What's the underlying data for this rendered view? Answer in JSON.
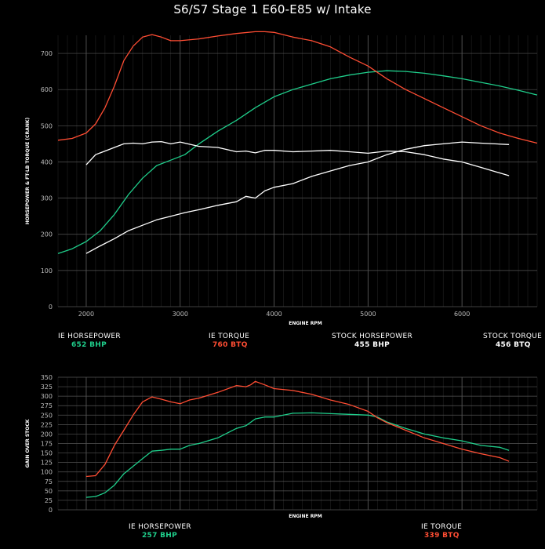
{
  "title": "S6/S7 Stage 1 E60-E85 w/ Intake",
  "colors": {
    "ie_hp": "#1fce8b",
    "ie_tq": "#ff4d33",
    "stock": "#ffffff",
    "grid": "#555555",
    "grid_minor": "#2a2a2a"
  },
  "chart_data": [
    {
      "type": "line",
      "title": "S6/S7 Stage 1 E60-E85 w/ Intake",
      "xlabel": "ENGINE RPM",
      "ylabel": "HORSEPOWER & FT-LB TORQUE (CRANK)",
      "xlim": [
        1700,
        6800
      ],
      "ylim": [
        0,
        750
      ],
      "xticks": [
        "2000",
        "3000",
        "4000",
        "5000",
        "6000"
      ],
      "yticks": [
        "0",
        "100",
        "200",
        "300",
        "400",
        "500",
        "600",
        "700"
      ],
      "grid": true,
      "legend_position": "bottom",
      "series": [
        {
          "name": "IE HORSEPOWER",
          "color": "#1fce8b",
          "peak_label": "652 BHP",
          "x": [
            1700,
            1850,
            2000,
            2150,
            2300,
            2450,
            2600,
            2750,
            2900,
            3050,
            3200,
            3400,
            3600,
            3800,
            4000,
            4200,
            4400,
            4600,
            4800,
            5000,
            5200,
            5400,
            5600,
            5800,
            6000,
            6200,
            6400,
            6600,
            6800
          ],
          "y": [
            147,
            160,
            180,
            210,
            255,
            310,
            355,
            390,
            405,
            420,
            450,
            485,
            515,
            550,
            580,
            600,
            615,
            630,
            640,
            648,
            652,
            650,
            645,
            638,
            630,
            620,
            610,
            598,
            585
          ]
        },
        {
          "name": "IE TORQUE",
          "color": "#ff4d33",
          "peak_label": "760 BTQ",
          "x": [
            1700,
            1850,
            2000,
            2100,
            2200,
            2300,
            2400,
            2500,
            2600,
            2700,
            2800,
            2900,
            3000,
            3200,
            3400,
            3600,
            3800,
            3900,
            4000,
            4200,
            4400,
            4600,
            4800,
            5000,
            5200,
            5400,
            5600,
            5800,
            6000,
            6200,
            6400,
            6600,
            6800
          ],
          "y": [
            460,
            465,
            480,
            505,
            550,
            610,
            680,
            720,
            745,
            752,
            745,
            735,
            735,
            740,
            748,
            755,
            760,
            760,
            758,
            745,
            735,
            718,
            690,
            665,
            630,
            600,
            575,
            550,
            525,
            500,
            480,
            465,
            452
          ]
        },
        {
          "name": "STOCK HORSEPOWER",
          "color": "#ffffff",
          "peak_label": "455 BHP",
          "x": [
            2000,
            2150,
            2300,
            2450,
            2600,
            2750,
            2900,
            3050,
            3200,
            3400,
            3600,
            3700,
            3800,
            3900,
            4000,
            4200,
            4400,
            4600,
            4800,
            5000,
            5200,
            5400,
            5600,
            5800,
            6000,
            6200,
            6500
          ],
          "y": [
            147,
            168,
            188,
            210,
            225,
            240,
            250,
            260,
            268,
            280,
            290,
            305,
            300,
            320,
            330,
            340,
            360,
            375,
            390,
            400,
            420,
            435,
            445,
            450,
            455,
            452,
            448
          ]
        },
        {
          "name": "STOCK TORQUE",
          "color": "#ffffff",
          "peak_label": "456 BTQ",
          "x": [
            2000,
            2100,
            2200,
            2300,
            2400,
            2500,
            2600,
            2700,
            2800,
            2900,
            3000,
            3200,
            3400,
            3600,
            3700,
            3800,
            3900,
            4000,
            4200,
            4400,
            4600,
            4800,
            5000,
            5200,
            5400,
            5600,
            5800,
            6000,
            6200,
            6500
          ],
          "y": [
            392,
            420,
            430,
            440,
            450,
            452,
            450,
            455,
            456,
            450,
            455,
            443,
            440,
            428,
            430,
            425,
            432,
            432,
            428,
            430,
            432,
            428,
            424,
            430,
            428,
            420,
            408,
            400,
            385,
            362
          ]
        }
      ]
    },
    {
      "type": "line",
      "xlabel": "ENGINE RPM",
      "ylabel": "GAIN OVER STOCK",
      "xlim": [
        1700,
        6800
      ],
      "ylim": [
        0,
        350
      ],
      "xticks": [],
      "yticks": [
        "0",
        "25",
        "50",
        "75",
        "100",
        "125",
        "150",
        "175",
        "200",
        "225",
        "250",
        "275",
        "300",
        "325",
        "350"
      ],
      "grid": true,
      "legend_position": "bottom",
      "series": [
        {
          "name": "IE HORSEPOWER",
          "color": "#1fce8b",
          "peak_label": "257 BHP",
          "x": [
            2000,
            2100,
            2200,
            2300,
            2400,
            2500,
            2600,
            2700,
            2800,
            2900,
            3000,
            3100,
            3200,
            3400,
            3600,
            3700,
            3800,
            3900,
            4000,
            4100,
            4200,
            4400,
            4600,
            4800,
            5000,
            5100,
            5200,
            5400,
            5600,
            5800,
            6000,
            6200,
            6400,
            6500
          ],
          "y": [
            33,
            35,
            45,
            65,
            95,
            115,
            135,
            155,
            157,
            160,
            160,
            170,
            175,
            190,
            215,
            222,
            240,
            245,
            245,
            250,
            255,
            256,
            254,
            252,
            250,
            245,
            232,
            215,
            200,
            190,
            182,
            170,
            165,
            157
          ]
        },
        {
          "name": "IE TORQUE",
          "color": "#ff4d33",
          "peak_label": "339 BTQ",
          "x": [
            2000,
            2100,
            2200,
            2300,
            2400,
            2500,
            2600,
            2700,
            2800,
            2900,
            3000,
            3100,
            3200,
            3400,
            3600,
            3700,
            3750,
            3800,
            3900,
            4000,
            4200,
            4400,
            4600,
            4800,
            5000,
            5100,
            5200,
            5400,
            5600,
            5800,
            6000,
            6200,
            6400,
            6500
          ],
          "y": [
            88,
            90,
            120,
            170,
            210,
            250,
            285,
            298,
            292,
            285,
            280,
            290,
            295,
            310,
            328,
            325,
            330,
            339,
            330,
            320,
            315,
            305,
            290,
            278,
            260,
            243,
            230,
            210,
            190,
            175,
            160,
            148,
            138,
            128
          ]
        }
      ]
    }
  ]
}
